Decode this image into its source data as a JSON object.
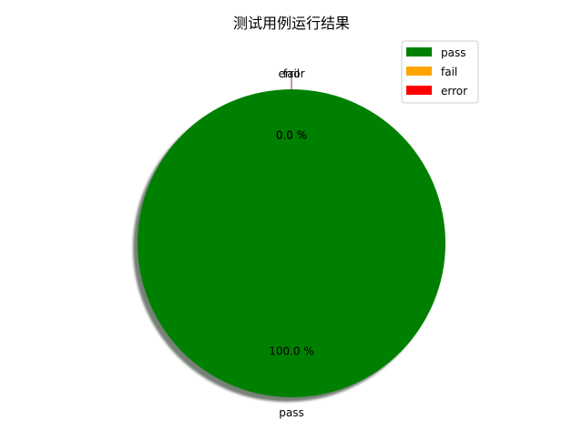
{
  "chart_data": {
    "type": "pie",
    "title": "测试用例运行结果",
    "categories": [
      "pass",
      "fail",
      "error"
    ],
    "values": [
      100.0,
      0.0,
      0.0
    ],
    "percent_labels": [
      "100.0 %",
      "0.0 %",
      "0.0 %"
    ],
    "colors": [
      "#008000",
      "#ffa500",
      "#ff0000"
    ],
    "start_angle_deg": 90,
    "counterclockwise": true,
    "shadow": true,
    "legend": {
      "placement": "upper right",
      "entries": [
        "pass",
        "fail",
        "error"
      ]
    }
  }
}
